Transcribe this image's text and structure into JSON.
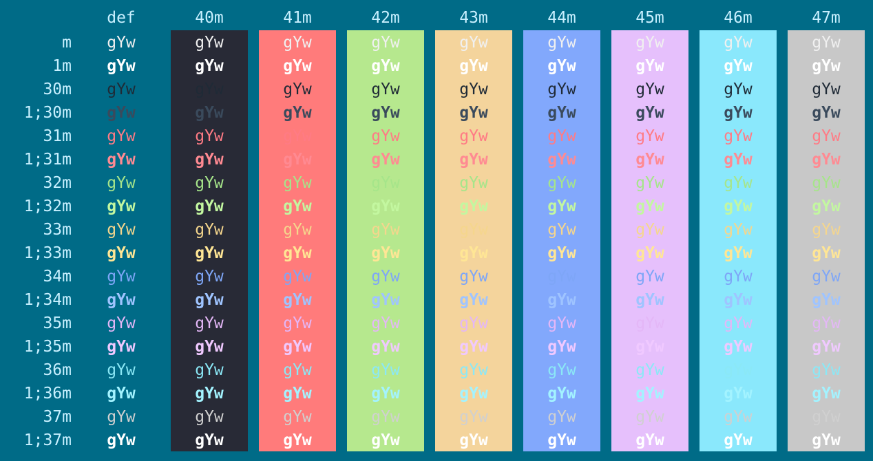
{
  "header_color": "#c8f0ff",
  "row_label_color": "#c8f0ff",
  "sample_text": "gYw",
  "columns": [
    {
      "label": "def",
      "bg": null
    },
    {
      "label": "40m",
      "bg": "#282a36"
    },
    {
      "label": "41m",
      "bg": "#ff7b7b"
    },
    {
      "label": "42m",
      "bg": "#b6e88e"
    },
    {
      "label": "43m",
      "bg": "#f4d49c"
    },
    {
      "label": "44m",
      "bg": "#82a8fc"
    },
    {
      "label": "45m",
      "bg": "#e6c0fc"
    },
    {
      "label": "46m",
      "bg": "#8ae8fc"
    },
    {
      "label": "47m",
      "bg": "#c8c8c8"
    }
  ],
  "rows": [
    {
      "label": "m",
      "bold": false,
      "fg": "#f0f0f0"
    },
    {
      "label": "1m",
      "bold": true,
      "fg": "#ffffff"
    },
    {
      "label": "30m",
      "bold": false,
      "fg": "#1f2a36"
    },
    {
      "label": "1;30m",
      "bold": true,
      "fg": "#3a4a5c"
    },
    {
      "label": "31m",
      "bold": false,
      "fg": "#ff7b85"
    },
    {
      "label": "1;31m",
      "bold": true,
      "fg": "#ff8a92"
    },
    {
      "label": "32m",
      "bold": false,
      "fg": "#a6e58a"
    },
    {
      "label": "1;32m",
      "bold": true,
      "fg": "#c3f7a0"
    },
    {
      "label": "33m",
      "bold": false,
      "fg": "#f5d68d"
    },
    {
      "label": "1;33m",
      "bold": true,
      "fg": "#ffe695"
    },
    {
      "label": "34m",
      "bold": false,
      "fg": "#7ea6f7"
    },
    {
      "label": "1;34m",
      "bold": true,
      "fg": "#9fc4ff"
    },
    {
      "label": "35m",
      "bold": false,
      "fg": "#e4b7f7"
    },
    {
      "label": "1;35m",
      "bold": true,
      "fg": "#f0c9ff"
    },
    {
      "label": "36m",
      "bold": false,
      "fg": "#8be8f6"
    },
    {
      "label": "1;36m",
      "bold": true,
      "fg": "#a3f3ff"
    },
    {
      "label": "37m",
      "bold": false,
      "fg": "#d0d0d0"
    },
    {
      "label": "1;37m",
      "bold": true,
      "fg": "#ffffff"
    }
  ]
}
